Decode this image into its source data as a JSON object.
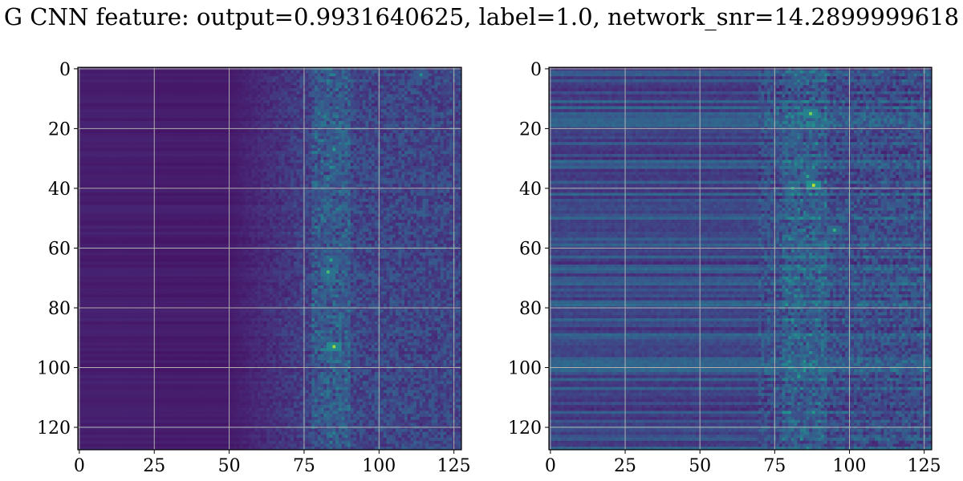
{
  "figure": {
    "title": "G CNN feature: output=0.9931640625, label=1.0, network_snr=14.2899999618"
  },
  "chart_data": [
    {
      "type": "heatmap",
      "panel": "left",
      "xlim": [
        0,
        128
      ],
      "ylim": [
        128,
        0
      ],
      "xticks": [
        0,
        25,
        50,
        75,
        100,
        125
      ],
      "yticks": [
        0,
        20,
        40,
        60,
        80,
        100,
        120
      ],
      "grid": true,
      "colormap": "viridis",
      "background_value": 0.06,
      "texture_onset_col": 50,
      "hotspots": [
        {
          "col": 85,
          "row": 27,
          "value": 0.55
        },
        {
          "col": 84,
          "row": 33,
          "value": 0.5
        },
        {
          "col": 84,
          "row": 64,
          "value": 0.6
        },
        {
          "col": 83,
          "row": 68,
          "value": 0.7
        },
        {
          "col": 85,
          "row": 93,
          "value": 0.85
        },
        {
          "col": 114,
          "row": 2,
          "value": 0.5
        },
        {
          "col": 82,
          "row": 16,
          "value": 0.45
        }
      ]
    },
    {
      "type": "heatmap",
      "panel": "right",
      "xlim": [
        0,
        128
      ],
      "ylim": [
        128,
        0
      ],
      "xticks": [
        0,
        25,
        50,
        75,
        100,
        125
      ],
      "yticks": [
        0,
        20,
        40,
        60,
        80,
        100,
        120
      ],
      "grid": true,
      "colormap": "viridis",
      "background_value": 0.2,
      "texture_onset_col": 0,
      "hotspots": [
        {
          "col": 87,
          "row": 15,
          "value": 0.8
        },
        {
          "col": 88,
          "row": 39,
          "value": 0.9
        },
        {
          "col": 81,
          "row": 40,
          "value": 0.6
        },
        {
          "col": 86,
          "row": 36,
          "value": 0.6
        },
        {
          "col": 95,
          "row": 54,
          "value": 0.65
        },
        {
          "col": 82,
          "row": 76,
          "value": 0.5
        },
        {
          "col": 83,
          "row": 103,
          "value": 0.55
        },
        {
          "col": 88,
          "row": 115,
          "value": 0.55
        },
        {
          "col": 87,
          "row": 95,
          "value": 0.5
        }
      ]
    }
  ]
}
